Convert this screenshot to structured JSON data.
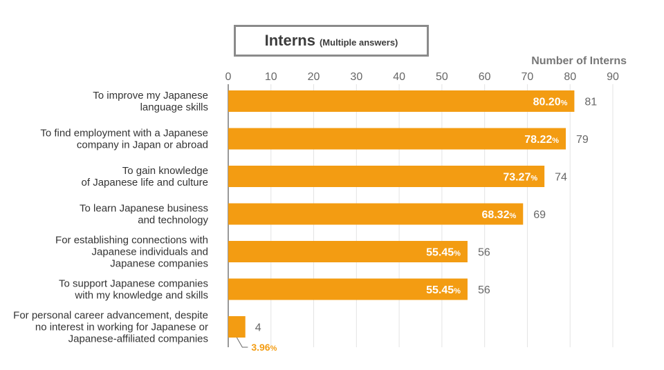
{
  "chart_data": {
    "type": "bar",
    "orientation": "horizontal",
    "title": "Interns",
    "subtitle": "(Multiple answers)",
    "xlabel": "Number of Interns",
    "xlim": [
      0,
      90
    ],
    "xticks": [
      0,
      10,
      20,
      30,
      40,
      50,
      60,
      70,
      80,
      90
    ],
    "grid": true,
    "bar_color": "#f39c12",
    "categories": [
      [
        "To improve my Japanese",
        "language skills"
      ],
      [
        "To find employment with a Japanese",
        "company in Japan or abroad"
      ],
      [
        "To gain knowledge",
        "of Japanese life and culture"
      ],
      [
        "To learn Japanese business",
        "and technology"
      ],
      [
        "For establishing connections with",
        "Japanese individuals and",
        "Japanese companies"
      ],
      [
        "To support Japanese companies",
        "with my knowledge and skills"
      ],
      [
        "For personal career advancement, despite",
        "no interest in working for Japanese or",
        "Japanese-affiliated companies"
      ]
    ],
    "values": [
      81,
      79,
      74,
      69,
      56,
      56,
      4
    ],
    "percentages": [
      "80.20",
      "78.22",
      "73.27",
      "68.32",
      "55.45",
      "55.45",
      "3.96"
    ],
    "percent_unit": "%"
  }
}
